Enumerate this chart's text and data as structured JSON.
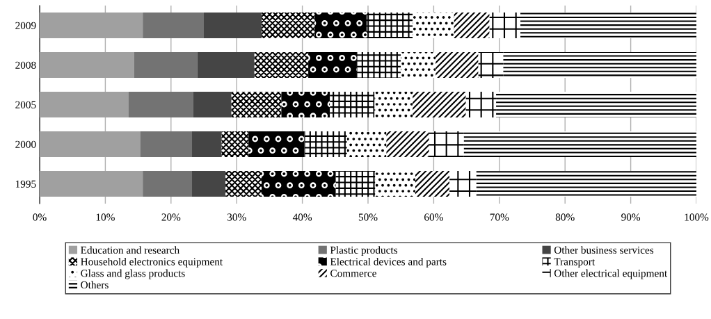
{
  "chart_data": {
    "type": "bar",
    "orientation": "horizontal",
    "stacked": true,
    "categories": [
      "2009",
      "2008",
      "2005",
      "2000",
      "1995"
    ],
    "series": [
      {
        "name": "Education and research",
        "color": "#a0a0a0",
        "values": [
          15.7,
          14.4,
          13.5,
          15.3,
          15.7
        ]
      },
      {
        "name": "Plastic products",
        "color": "#737373",
        "values": [
          9.3,
          9.6,
          9.9,
          7.9,
          7.5
        ]
      },
      {
        "name": "Other business services",
        "color": "#454545",
        "values": [
          8.8,
          8.7,
          5.8,
          4.5,
          5.1
        ]
      },
      {
        "name": "Household electronics equipment",
        "color": "#ffffff",
        "values": [
          8.1,
          8.2,
          7.6,
          4.1,
          5.5
        ]
      },
      {
        "name": "Electrical devices and parts",
        "color": "#000000",
        "values": [
          7.9,
          7.4,
          7.4,
          8.5,
          11.3
        ]
      },
      {
        "name": "Transport",
        "color": "#ffffff",
        "values": [
          7.0,
          6.7,
          6.8,
          6.5,
          6.0
        ]
      },
      {
        "name": "Glass and glass products",
        "color": "#ffffff",
        "values": [
          6.3,
          5.3,
          5.8,
          6.0,
          6.1
        ]
      },
      {
        "name": "Commerce",
        "color": "#ffffff",
        "values": [
          5.4,
          6.5,
          8.1,
          6.5,
          5.2
        ]
      },
      {
        "name": "Other electrical equipment",
        "color": "#ffffff",
        "values": [
          4.7,
          3.8,
          4.6,
          5.3,
          4.1
        ]
      },
      {
        "name": "Others",
        "color": "#ffffff",
        "values": [
          26.8,
          29.4,
          30.5,
          35.4,
          33.5
        ]
      }
    ],
    "xlim": [
      0,
      100
    ],
    "xticks": [
      {
        "value": 0,
        "label": "0%"
      },
      {
        "value": 10,
        "label": "10%"
      },
      {
        "value": 20,
        "label": "20%"
      },
      {
        "value": 30,
        "label": "30%"
      },
      {
        "value": 40,
        "label": "40%"
      },
      {
        "value": 50,
        "label": "50%"
      },
      {
        "value": 60,
        "label": "60%"
      },
      {
        "value": 70,
        "label": "70%"
      },
      {
        "value": 80,
        "label": "80%"
      },
      {
        "value": 90,
        "label": "90%"
      },
      {
        "value": 100,
        "label": "100%"
      }
    ],
    "grid": "x",
    "legend": "bottom"
  }
}
